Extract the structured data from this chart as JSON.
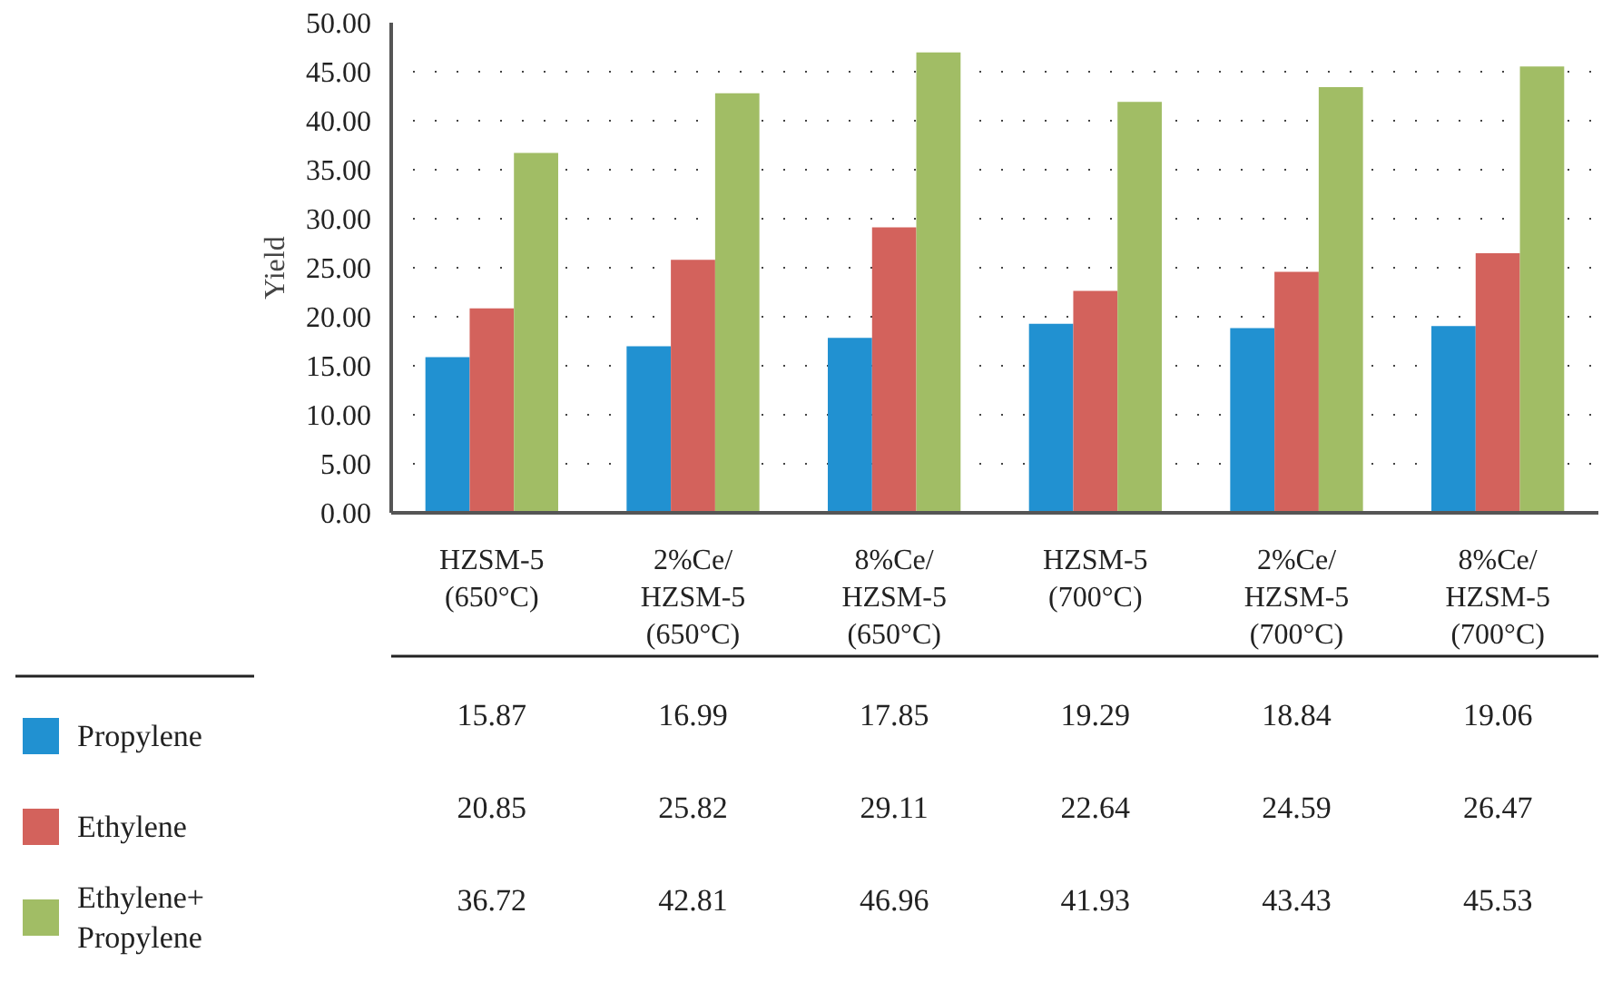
{
  "chart_data": {
    "type": "bar",
    "ylabel": "Yield",
    "categories": [
      "HZSM-5\n(650°C)",
      "2%Ce/\nHZSM-5\n(650°C)",
      "8%Ce/\nHZSM-5\n(650°C)",
      "HZSM-5\n(700°C)",
      "2%Ce/\nHZSM-5\n(700°C)",
      "8%Ce/\nHZSM-5\n(700°C)"
    ],
    "series": [
      {
        "name": "Propylene",
        "color": "#2191d1",
        "values": [
          15.87,
          16.99,
          17.85,
          19.29,
          18.84,
          19.06
        ]
      },
      {
        "name": "Ethylene",
        "color": "#d3625c",
        "values": [
          20.85,
          25.82,
          29.11,
          22.64,
          24.59,
          26.47
        ]
      },
      {
        "name": "Ethylene+\nPropylene",
        "color": "#a1bd65",
        "values": [
          36.72,
          42.81,
          46.96,
          41.93,
          43.43,
          45.53
        ]
      }
    ],
    "ylim": [
      0,
      50
    ],
    "yticks": [
      {
        "value": 0,
        "label": "0.00"
      },
      {
        "value": 5,
        "label": "5.00"
      },
      {
        "value": 10,
        "label": "10.00"
      },
      {
        "value": 15,
        "label": "15.00"
      },
      {
        "value": 20,
        "label": "20.00"
      },
      {
        "value": 25,
        "label": "25.00"
      },
      {
        "value": 30,
        "label": "30.00"
      },
      {
        "value": 35,
        "label": "35.00"
      },
      {
        "value": 40,
        "label": "40.00"
      },
      {
        "value": 45,
        "label": "45.00"
      },
      {
        "value": 50,
        "label": "50.00"
      }
    ],
    "grid": "y",
    "legend": "bottom",
    "data_labels": true
  }
}
